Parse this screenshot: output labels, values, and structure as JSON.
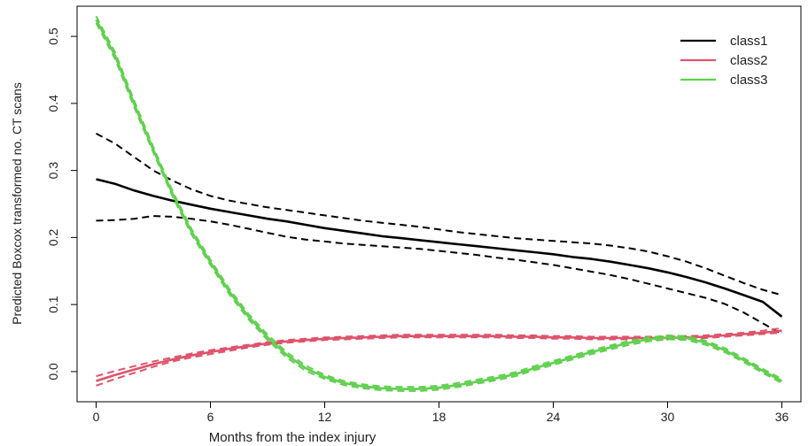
{
  "chart_data": {
    "type": "line",
    "title": "",
    "xlabel": "Months from the index injury",
    "ylabel": "Predicted Boxcox transformed no. CT scans",
    "xlim": [
      -1,
      37
    ],
    "ylim": [
      -0.045,
      0.545
    ],
    "xticks": [
      0,
      6,
      12,
      18,
      24,
      30,
      36
    ],
    "yticks": [
      0.0,
      0.1,
      0.2,
      0.3,
      0.4,
      0.5
    ],
    "ytick_labels": [
      "0.0",
      "0.1",
      "0.2",
      "0.3",
      "0.4",
      "0.5"
    ],
    "legend_position": "top-right",
    "grid": false,
    "x": [
      0,
      1,
      2,
      3,
      4,
      5,
      6,
      7,
      8,
      9,
      10,
      11,
      12,
      13,
      14,
      15,
      16,
      17,
      18,
      19,
      20,
      21,
      22,
      23,
      24,
      25,
      26,
      27,
      28,
      29,
      30,
      31,
      32,
      33,
      34,
      35,
      36
    ],
    "series": [
      {
        "name": "class1",
        "color": "#000000",
        "values": [
          0.287,
          0.28,
          0.27,
          0.262,
          0.255,
          0.249,
          0.243,
          0.238,
          0.233,
          0.228,
          0.224,
          0.219,
          0.214,
          0.21,
          0.206,
          0.202,
          0.199,
          0.196,
          0.193,
          0.19,
          0.187,
          0.184,
          0.181,
          0.178,
          0.175,
          0.171,
          0.168,
          0.164,
          0.159,
          0.154,
          0.148,
          0.141,
          0.133,
          0.124,
          0.114,
          0.104,
          0.082
        ],
        "ci_upper": [
          0.355,
          0.34,
          0.32,
          0.3,
          0.285,
          0.272,
          0.262,
          0.255,
          0.25,
          0.245,
          0.241,
          0.237,
          0.233,
          0.229,
          0.225,
          0.222,
          0.219,
          0.216,
          0.212,
          0.208,
          0.205,
          0.202,
          0.199,
          0.197,
          0.195,
          0.193,
          0.191,
          0.188,
          0.184,
          0.179,
          0.172,
          0.164,
          0.154,
          0.143,
          0.132,
          0.122,
          0.114
        ],
        "ci_lower": [
          0.225,
          0.226,
          0.228,
          0.232,
          0.231,
          0.228,
          0.224,
          0.219,
          0.213,
          0.207,
          0.201,
          0.197,
          0.194,
          0.191,
          0.189,
          0.187,
          0.185,
          0.183,
          0.18,
          0.177,
          0.174,
          0.17,
          0.167,
          0.163,
          0.159,
          0.154,
          0.149,
          0.144,
          0.138,
          0.131,
          0.124,
          0.117,
          0.11,
          0.101,
          0.088,
          0.072,
          0.056
        ]
      },
      {
        "name": "class2",
        "color": "#DF536B",
        "values": [
          -0.014,
          -0.005,
          0.003,
          0.011,
          0.018,
          0.024,
          0.029,
          0.034,
          0.038,
          0.042,
          0.045,
          0.047,
          0.049,
          0.05,
          0.051,
          0.052,
          0.053,
          0.053,
          0.053,
          0.053,
          0.053,
          0.053,
          0.052,
          0.052,
          0.051,
          0.051,
          0.05,
          0.05,
          0.05,
          0.05,
          0.05,
          0.051,
          0.052,
          0.054,
          0.056,
          0.058,
          0.061
        ],
        "ci_upper": [
          -0.007,
          0.001,
          0.008,
          0.015,
          0.021,
          0.027,
          0.032,
          0.036,
          0.04,
          0.044,
          0.047,
          0.049,
          0.051,
          0.052,
          0.053,
          0.054,
          0.055,
          0.055,
          0.055,
          0.055,
          0.055,
          0.055,
          0.054,
          0.054,
          0.053,
          0.053,
          0.052,
          0.052,
          0.052,
          0.052,
          0.052,
          0.053,
          0.054,
          0.056,
          0.058,
          0.061,
          0.065
        ],
        "ci_lower": [
          -0.021,
          -0.011,
          -0.002,
          0.007,
          0.015,
          0.021,
          0.026,
          0.031,
          0.036,
          0.04,
          0.043,
          0.045,
          0.047,
          0.048,
          0.049,
          0.05,
          0.051,
          0.051,
          0.051,
          0.051,
          0.051,
          0.051,
          0.05,
          0.05,
          0.049,
          0.049,
          0.048,
          0.048,
          0.048,
          0.048,
          0.048,
          0.049,
          0.05,
          0.052,
          0.054,
          0.056,
          0.058
        ]
      },
      {
        "name": "class3",
        "color": "#61D04F",
        "values": [
          0.525,
          0.471,
          0.399,
          0.331,
          0.266,
          0.209,
          0.163,
          0.119,
          0.082,
          0.051,
          0.025,
          0.005,
          -0.008,
          -0.017,
          -0.022,
          -0.025,
          -0.026,
          -0.026,
          -0.024,
          -0.02,
          -0.015,
          -0.01,
          -0.004,
          0.005,
          0.013,
          0.021,
          0.029,
          0.036,
          0.043,
          0.048,
          0.051,
          0.05,
          0.043,
          0.032,
          0.017,
          0.001,
          -0.014
        ],
        "ci_upper": [
          0.53,
          0.476,
          0.404,
          0.335,
          0.27,
          0.213,
          0.167,
          0.123,
          0.086,
          0.055,
          0.029,
          0.009,
          -0.005,
          -0.014,
          -0.019,
          -0.022,
          -0.023,
          -0.023,
          -0.021,
          -0.017,
          -0.012,
          -0.007,
          -0.001,
          0.008,
          0.016,
          0.024,
          0.032,
          0.039,
          0.046,
          0.051,
          0.054,
          0.053,
          0.046,
          0.035,
          0.02,
          0.004,
          -0.011
        ],
        "ci_lower": [
          0.52,
          0.466,
          0.394,
          0.327,
          0.262,
          0.205,
          0.159,
          0.115,
          0.078,
          0.047,
          0.021,
          0.001,
          -0.011,
          -0.02,
          -0.025,
          -0.028,
          -0.029,
          -0.029,
          -0.027,
          -0.023,
          -0.018,
          -0.013,
          -0.007,
          0.002,
          0.01,
          0.018,
          0.026,
          0.033,
          0.04,
          0.045,
          0.048,
          0.047,
          0.04,
          0.029,
          0.014,
          -0.002,
          -0.017
        ]
      }
    ]
  }
}
